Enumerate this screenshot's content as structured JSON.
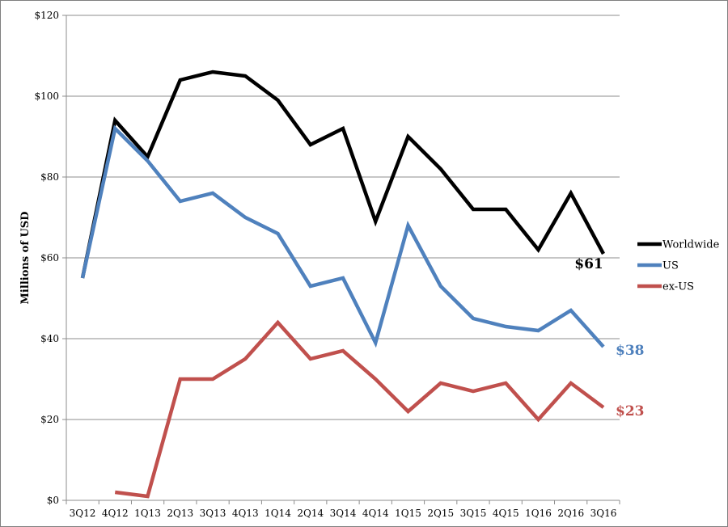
{
  "chart_data": {
    "type": "line",
    "title": "",
    "xlabel": "",
    "ylabel": "Millions of USD",
    "categories": [
      "3Q12",
      "4Q12",
      "1Q13",
      "2Q13",
      "3Q13",
      "4Q13",
      "1Q14",
      "2Q14",
      "3Q14",
      "4Q14",
      "1Q15",
      "2Q15",
      "3Q15",
      "4Q15",
      "1Q16",
      "2Q16",
      "3Q16"
    ],
    "ylim": [
      0,
      120
    ],
    "yticks": [
      0,
      20,
      40,
      60,
      80,
      100,
      120
    ],
    "ytick_labels": [
      "$0",
      "$20",
      "$40",
      "$60",
      "$80",
      "$100",
      "$120"
    ],
    "grid": "horizontal",
    "legend_position": "right",
    "series": [
      {
        "name": "Worldwide",
        "color": "#000000",
        "values": [
          55,
          94,
          85,
          104,
          106,
          105,
          99,
          88,
          92,
          69,
          90,
          82,
          72,
          72,
          62,
          76,
          61
        ],
        "end_label": "$61"
      },
      {
        "name": "US",
        "color": "#4f81bd",
        "values": [
          55,
          92,
          84,
          74,
          76,
          70,
          66,
          53,
          55,
          39,
          68,
          53,
          45,
          43,
          42,
          47,
          38
        ],
        "end_label": "$38"
      },
      {
        "name": "ex-US",
        "color": "#c0504d",
        "values": [
          null,
          2,
          1,
          30,
          30,
          35,
          44,
          35,
          37,
          30,
          22,
          29,
          27,
          29,
          20,
          29,
          23
        ],
        "end_label": "$23"
      }
    ]
  }
}
